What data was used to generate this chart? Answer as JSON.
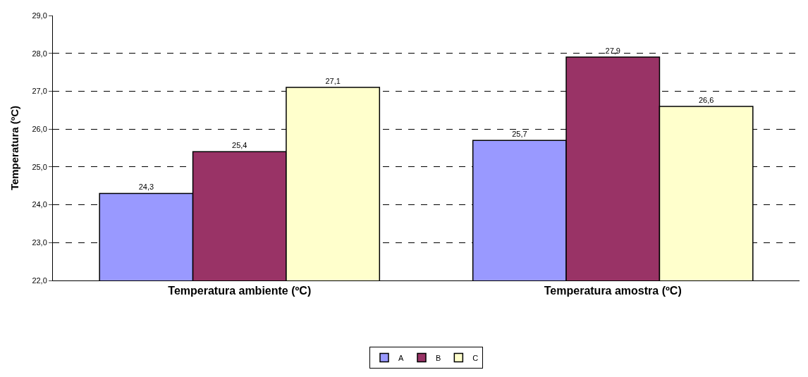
{
  "chart_data": {
    "type": "bar",
    "ylabel": "Temperatura (ºC)",
    "categories": [
      "Temperatura ambiente (ºC)",
      "Temperatura amostra (ºC)"
    ],
    "series": [
      {
        "name": "A",
        "color": "#9999ff",
        "values": [
          24.3,
          25.7
        ],
        "value_labels": [
          "24,3",
          "25,7"
        ]
      },
      {
        "name": "B",
        "color": "#993366",
        "values": [
          25.4,
          27.9
        ],
        "value_labels": [
          "25,4",
          "27,9"
        ]
      },
      {
        "name": "C",
        "color": "#ffffcc",
        "values": [
          27.1,
          26.6
        ],
        "value_labels": [
          "27,1",
          "26,6"
        ]
      }
    ],
    "ylim": [
      22,
      29
    ],
    "yticks": [
      {
        "value": 22,
        "label": "22,0"
      },
      {
        "value": 23,
        "label": "23,0"
      },
      {
        "value": 24,
        "label": "24,0"
      },
      {
        "value": 25,
        "label": "25,0"
      },
      {
        "value": 26,
        "label": "26,0"
      },
      {
        "value": 27,
        "label": "27,0"
      },
      {
        "value": 28,
        "label": "28,0"
      },
      {
        "value": 29,
        "label": "29,0"
      }
    ],
    "grid": "y",
    "legend": "bottom"
  }
}
